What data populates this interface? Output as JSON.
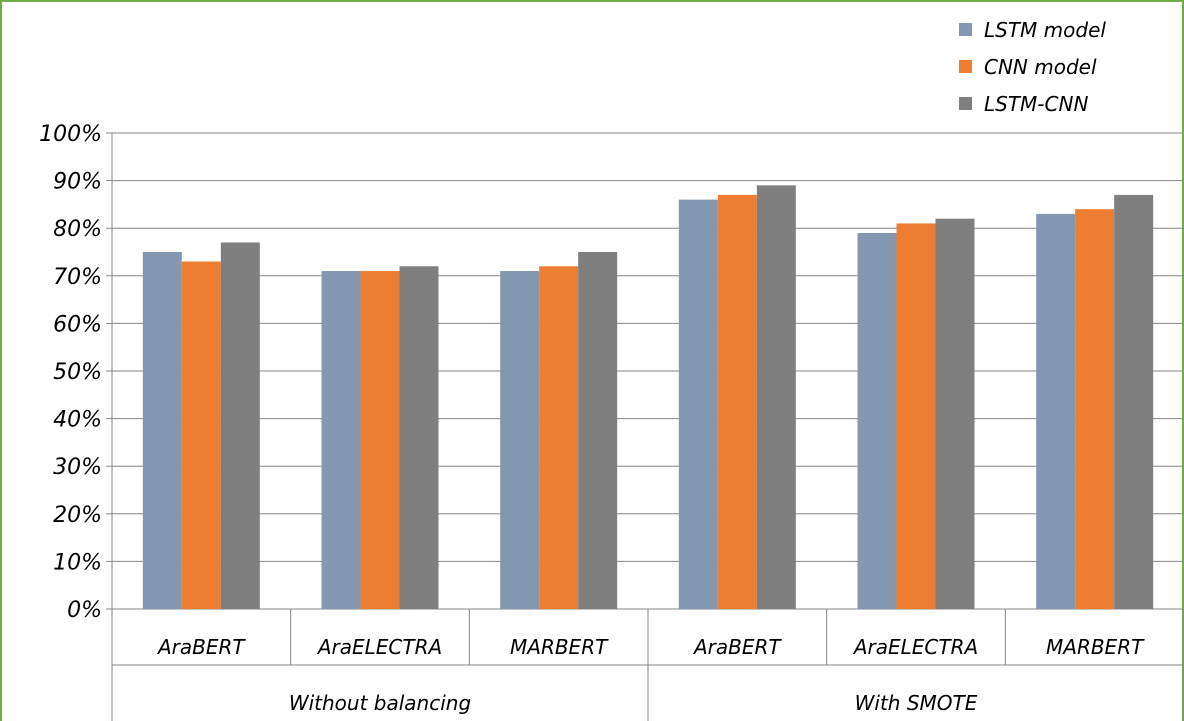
{
  "chart_data": {
    "type": "bar",
    "title": "",
    "xlabel": "",
    "ylabel": "",
    "ylim": [
      0,
      100
    ],
    "y_ticks": [
      "0%",
      "10%",
      "20%",
      "30%",
      "40%",
      "50%",
      "60%",
      "70%",
      "80%",
      "90%",
      "100%"
    ],
    "y_tick_values": [
      0,
      10,
      20,
      30,
      40,
      50,
      60,
      70,
      80,
      90,
      100
    ],
    "grid": true,
    "legend_position": "top-right",
    "groups": [
      {
        "label": "Without balancing",
        "categories": [
          "AraBERT",
          "AraELECTRA",
          "MARBERT"
        ]
      },
      {
        "label": "With SMOTE",
        "categories": [
          "AraBERT",
          "AraELECTRA",
          "MARBERT"
        ]
      }
    ],
    "categories": [
      "AraBERT",
      "AraELECTRA",
      "MARBERT",
      "AraBERT",
      "AraELECTRA",
      "MARBERT"
    ],
    "series": [
      {
        "name": "LSTM model",
        "color": "#8497B0",
        "values": [
          75,
          71,
          71,
          86,
          79,
          83
        ]
      },
      {
        "name": "CNN model",
        "color": "#ED7D31",
        "values": [
          73,
          71,
          72,
          87,
          81,
          84
        ]
      },
      {
        "name": "LSTM-CNN",
        "color": "#7F7F7F",
        "values": [
          77,
          72,
          75,
          89,
          82,
          87
        ]
      }
    ],
    "frame_color": "#70AD47",
    "grid_color": "#868686"
  }
}
